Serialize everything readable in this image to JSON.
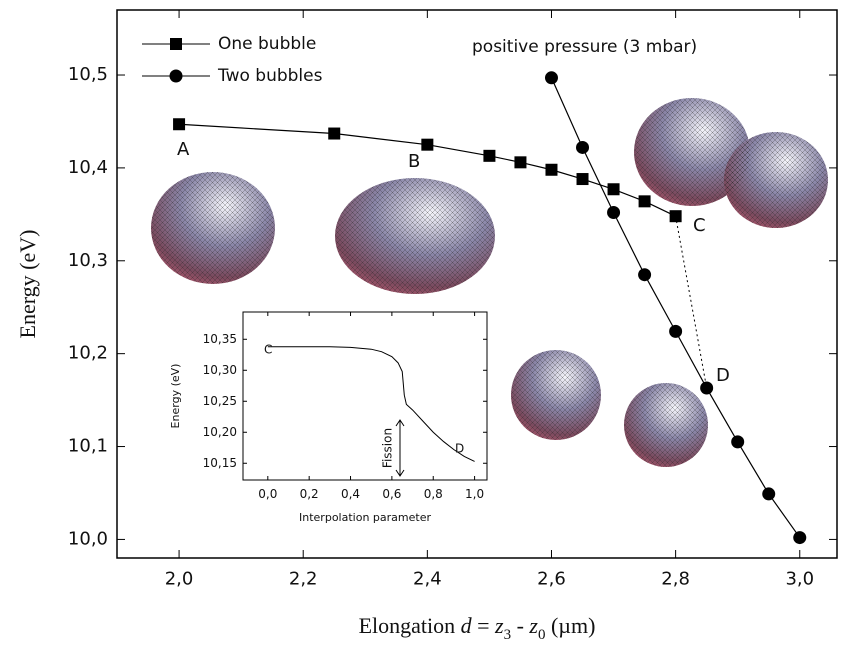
{
  "chart_data": [
    {
      "type": "line",
      "y_label": "Energy (eV)",
      "x_label": [
        "Elongation ",
        "d",
        " = ",
        "z",
        "3",
        " - ",
        "z",
        "0",
        "  (µm)"
      ],
      "xlim": [
        1.9,
        3.06
      ],
      "ylim": [
        9.98,
        10.57
      ],
      "xticks": [
        {
          "value": 2.0,
          "label": "2,0"
        },
        {
          "value": 2.2,
          "label": "2,2"
        },
        {
          "value": 2.4,
          "label": "2,4"
        },
        {
          "value": 2.6,
          "label": "2,6"
        },
        {
          "value": 2.8,
          "label": "2,8"
        },
        {
          "value": 3.0,
          "label": "3,0"
        }
      ],
      "yticks": [
        {
          "value": 10.0,
          "label": "10,0"
        },
        {
          "value": 10.1,
          "label": "10,1"
        },
        {
          "value": 10.2,
          "label": "10,2"
        },
        {
          "value": 10.3,
          "label": "10,3"
        },
        {
          "value": 10.4,
          "label": "10,4"
        },
        {
          "value": 10.5,
          "label": "10,5"
        }
      ],
      "legend": "upper left",
      "series": [
        {
          "name": "One bubble",
          "color": "#000000",
          "marker": "square",
          "x": [
            2.0,
            2.25,
            2.4,
            2.5,
            2.55,
            2.6,
            2.65,
            2.7,
            2.75,
            2.8
          ],
          "values": [
            10.447,
            10.437,
            10.425,
            10.413,
            10.406,
            10.398,
            10.388,
            10.377,
            10.364,
            10.348
          ]
        },
        {
          "name": "Two bubbles",
          "color": "#000000",
          "marker": "circle",
          "x": [
            2.6,
            2.65,
            2.7,
            2.75,
            2.8,
            2.85,
            2.9,
            2.95,
            3.0
          ],
          "values": [
            10.497,
            10.422,
            10.352,
            10.285,
            10.224,
            10.163,
            10.105,
            10.049,
            10.002
          ]
        }
      ],
      "annotations": [
        "A",
        "B",
        "C",
        "D",
        "positive pressure (3 mbar)"
      ]
    },
    {
      "type": "line",
      "y_label": "Energy (eV)",
      "x_label": "Interpolation parameter",
      "xlim": [
        -0.12,
        1.06
      ],
      "ylim": [
        10.123,
        10.394
      ],
      "xticks": [
        {
          "value": 0.0,
          "label": "0,0"
        },
        {
          "value": 0.2,
          "label": "0,2"
        },
        {
          "value": 0.4,
          "label": "0,4"
        },
        {
          "value": 0.6,
          "label": "0,6"
        },
        {
          "value": 0.8,
          "label": "0,8"
        },
        {
          "value": 1.0,
          "label": "1,0"
        }
      ],
      "yticks": [
        {
          "value": 10.15,
          "label": "10,15"
        },
        {
          "value": 10.2,
          "label": "10,20"
        },
        {
          "value": 10.25,
          "label": "10,25"
        },
        {
          "value": 10.3,
          "label": "10,30"
        },
        {
          "value": 10.35,
          "label": "10,35"
        }
      ],
      "series": [
        {
          "color": "#000000",
          "x": [
            0.0,
            0.1,
            0.2,
            0.3,
            0.4,
            0.5,
            0.55,
            0.6,
            0.63,
            0.65,
            0.66,
            0.67,
            0.7,
            0.75,
            0.8,
            0.85,
            0.9,
            0.95,
            1.0
          ],
          "values": [
            10.338,
            10.338,
            10.338,
            10.338,
            10.337,
            10.334,
            10.33,
            10.322,
            10.312,
            10.298,
            10.26,
            10.245,
            10.236,
            10.218,
            10.2,
            10.185,
            10.172,
            10.161,
            10.153
          ]
        }
      ],
      "annotations": [
        "C",
        "D",
        "Fission"
      ]
    }
  ]
}
